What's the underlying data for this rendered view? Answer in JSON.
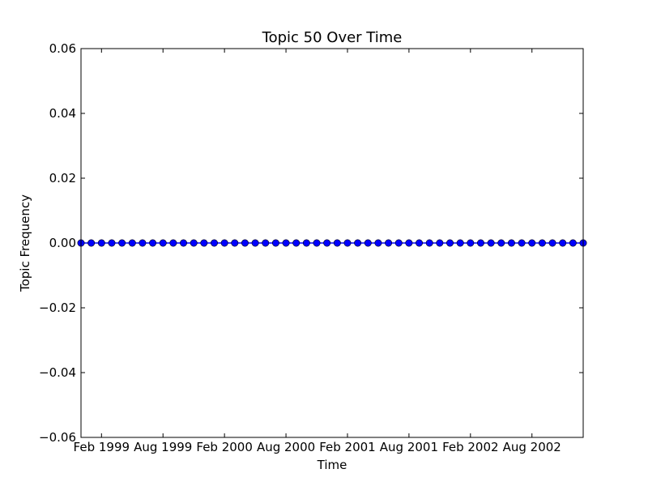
{
  "chart_data": {
    "type": "line",
    "title": "Topic 50 Over Time",
    "xlabel": "Time",
    "ylabel": "Topic Frequency",
    "ylim": [
      -0.06,
      0.06
    ],
    "y_ticks": [
      "0.06",
      "0.04",
      "0.02",
      "0.00",
      "−0.02",
      "−0.04",
      "−0.06"
    ],
    "y_tick_values": [
      0.06,
      0.04,
      0.02,
      0.0,
      -0.02,
      -0.04,
      -0.06
    ],
    "xlim": [
      "1998-12",
      "2003-01"
    ],
    "x_ticks": [
      "Feb 1999",
      "Aug 1999",
      "Feb 2000",
      "Aug 2000",
      "Feb 2001",
      "Aug 2001",
      "Feb 2002",
      "Aug 2002"
    ],
    "x_tick_dates": [
      "1999-02",
      "1999-08",
      "2000-02",
      "2000-08",
      "2001-02",
      "2001-08",
      "2002-02",
      "2002-08"
    ],
    "grid": false,
    "series": [
      {
        "color": "#0000ff",
        "marker": "circle",
        "x": [
          "1998-12",
          "1999-01",
          "1999-02",
          "1999-03",
          "1999-04",
          "1999-05",
          "1999-06",
          "1999-07",
          "1999-08",
          "1999-09",
          "1999-10",
          "1999-11",
          "1999-12",
          "2000-01",
          "2000-02",
          "2000-03",
          "2000-04",
          "2000-05",
          "2000-06",
          "2000-07",
          "2000-08",
          "2000-09",
          "2000-10",
          "2000-11",
          "2000-12",
          "2001-01",
          "2001-02",
          "2001-03",
          "2001-04",
          "2001-05",
          "2001-06",
          "2001-07",
          "2001-08",
          "2001-09",
          "2001-10",
          "2001-11",
          "2001-12",
          "2002-01",
          "2002-02",
          "2002-03",
          "2002-04",
          "2002-05",
          "2002-06",
          "2002-07",
          "2002-08",
          "2002-09",
          "2002-10",
          "2002-11",
          "2002-12",
          "2003-01"
        ],
        "y": [
          0,
          0,
          0,
          0,
          0,
          0,
          0,
          0,
          0,
          0,
          0,
          0,
          0,
          0,
          0,
          0,
          0,
          0,
          0,
          0,
          0,
          0,
          0,
          0,
          0,
          0,
          0,
          0,
          0,
          0,
          0,
          0,
          0,
          0,
          0,
          0,
          0,
          0,
          0,
          0,
          0,
          0,
          0,
          0,
          0,
          0,
          0,
          0,
          0,
          0
        ]
      }
    ]
  }
}
